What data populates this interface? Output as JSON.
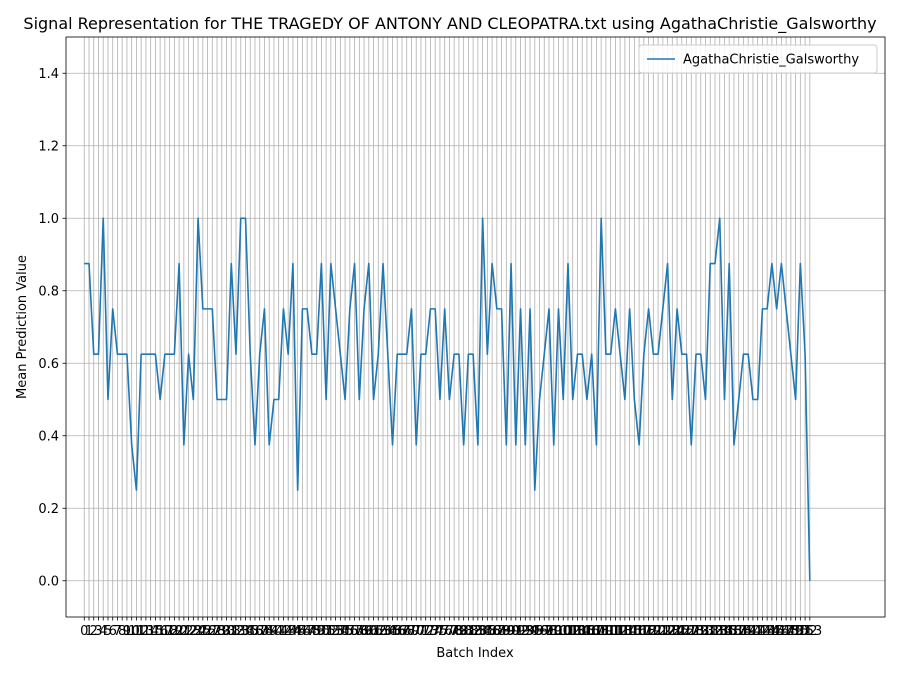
{
  "chart_data": {
    "type": "line",
    "title": "Signal Representation for THE TRAGEDY OF ANTONY AND CLEOPATRA.txt using AgathaChristie_Galsworthy",
    "xlabel": "Batch Index",
    "ylabel": "Mean Prediction Value",
    "xlim": [
      -3.85,
      168.85
    ],
    "ylim": [
      -0.1,
      1.5
    ],
    "y_ticks": [
      0.0,
      0.2,
      0.4,
      0.6,
      0.8,
      1.0,
      1.2,
      1.4
    ],
    "grid": true,
    "legend_position": "top-right",
    "series": [
      {
        "name": "AgathaChristie_Galsworthy",
        "color": "#1f77b4",
        "values": [
          0.875,
          0.875,
          0.625,
          0.625,
          1.0,
          0.5,
          0.75,
          0.625,
          0.625,
          0.625,
          0.375,
          0.25,
          0.625,
          0.625,
          0.625,
          0.625,
          0.5,
          0.625,
          0.625,
          0.625,
          0.875,
          0.375,
          0.625,
          0.5,
          1.0,
          0.75,
          0.75,
          0.75,
          0.5,
          0.5,
          0.5,
          0.875,
          0.625,
          1.0,
          1.0,
          0.625,
          0.375,
          0.625,
          0.75,
          0.375,
          0.5,
          0.5,
          0.75,
          0.625,
          0.875,
          0.25,
          0.75,
          0.75,
          0.625,
          0.625,
          0.875,
          0.5,
          0.875,
          0.75,
          0.625,
          0.5,
          0.75,
          0.875,
          0.5,
          0.75,
          0.875,
          0.5,
          0.625,
          0.875,
          0.625,
          0.375,
          0.625,
          0.625,
          0.625,
          0.75,
          0.375,
          0.625,
          0.625,
          0.75,
          0.75,
          0.5,
          0.75,
          0.5,
          0.625,
          0.625,
          0.375,
          0.625,
          0.625,
          0.375,
          1.0,
          0.625,
          0.875,
          0.75,
          0.75,
          0.375,
          0.875,
          0.375,
          0.75,
          0.375,
          0.75,
          0.25,
          0.5,
          0.625,
          0.75,
          0.375,
          0.75,
          0.5,
          0.875,
          0.5,
          0.625,
          0.625,
          0.5,
          0.625,
          0.375,
          1.0,
          0.625,
          0.625,
          0.75,
          0.625,
          0.5,
          0.75,
          0.5,
          0.375,
          0.625,
          0.75,
          0.625,
          0.625,
          0.75,
          0.875,
          0.5,
          0.75,
          0.625,
          0.625,
          0.375,
          0.625,
          0.625,
          0.5,
          0.875,
          0.875,
          1.0,
          0.5,
          0.875,
          0.375,
          0.5,
          0.625,
          0.625,
          0.5,
          0.5,
          0.75,
          0.75,
          0.875,
          0.75,
          0.875,
          0.75,
          0.625,
          0.5,
          0.875,
          0.625,
          0.0
        ]
      }
    ]
  }
}
